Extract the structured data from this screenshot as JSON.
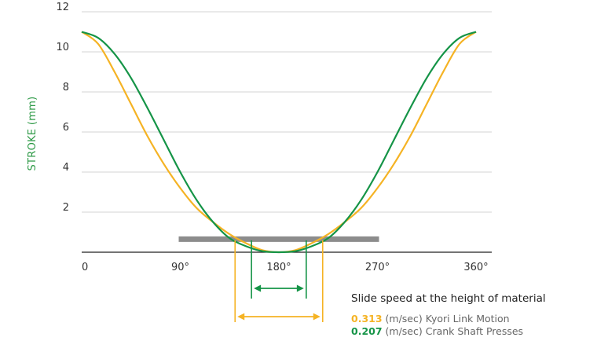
{
  "chart_data": {
    "type": "line",
    "ylabel": "STROKE (mm)",
    "xlabel": "",
    "xlim": [
      0,
      360
    ],
    "ylim": [
      0,
      12
    ],
    "x_ticks": [
      {
        "value": 0,
        "label": "0"
      },
      {
        "value": 90,
        "label": "90°"
      },
      {
        "value": 180,
        "label": "180°"
      },
      {
        "value": 270,
        "label": "270°"
      },
      {
        "value": 360,
        "label": "360°"
      }
    ],
    "y_ticks": [
      {
        "value": 2,
        "label": "2"
      },
      {
        "value": 4,
        "label": "4"
      },
      {
        "value": 6,
        "label": "6"
      },
      {
        "value": 8,
        "label": "8"
      },
      {
        "value": 10,
        "label": "10"
      },
      {
        "value": 12,
        "label": "12"
      }
    ],
    "grid": "horizontal",
    "series": [
      {
        "color": "#f5b324",
        "x": [
          0,
          15,
          30,
          45,
          60,
          75,
          90,
          105,
          120,
          135,
          150,
          165,
          180,
          195,
          210,
          225,
          240,
          255,
          270,
          285,
          300,
          315,
          330,
          345,
          360
        ],
        "y": [
          11.0,
          10.4,
          9.0,
          7.4,
          5.8,
          4.4,
          3.2,
          2.2,
          1.5,
          0.9,
          0.45,
          0.1,
          0.0,
          0.1,
          0.45,
          0.9,
          1.5,
          2.2,
          3.2,
          4.4,
          5.8,
          7.4,
          9.0,
          10.4,
          11.0
        ]
      },
      {
        "color": "#159447",
        "x": [
          0,
          15,
          30,
          45,
          60,
          75,
          90,
          105,
          120,
          135,
          150,
          165,
          180,
          195,
          210,
          225,
          240,
          255,
          270,
          285,
          300,
          315,
          330,
          345,
          360
        ],
        "y": [
          11.0,
          10.7,
          9.9,
          8.7,
          7.2,
          5.6,
          4.0,
          2.6,
          1.5,
          0.7,
          0.3,
          0.05,
          0.0,
          0.05,
          0.3,
          0.7,
          1.5,
          2.6,
          4.0,
          5.6,
          7.2,
          8.7,
          9.9,
          10.7,
          11.0
        ]
      }
    ],
    "material_band": {
      "x_start": 90,
      "x_end": 270,
      "y": 0.75,
      "color": "#8c8c8c"
    },
    "speed_markers": [
      {
        "color": "#f5b324",
        "x_start": 140,
        "x_end": 220
      },
      {
        "color": "#159447",
        "x_start": 155,
        "x_end": 205
      }
    ],
    "caption": "Slide speed at the height of material",
    "legend": [
      {
        "value": "0.313",
        "label": " (m/sec) Kyori Link Motion",
        "color": "#f5b324"
      },
      {
        "value": "0.207",
        "label": " (m/sec) Crank Shaft Presses",
        "color": "#159447"
      }
    ]
  }
}
